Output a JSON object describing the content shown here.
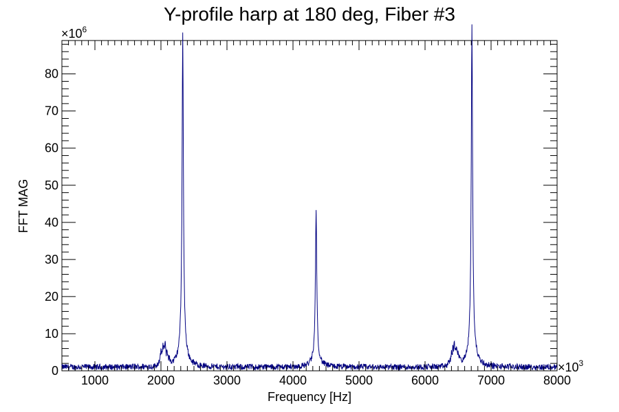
{
  "chart_data": {
    "type": "line",
    "title": "Y-profile harp at 180 deg, Fiber #3",
    "xlabel": "Frequency [Hz]",
    "ylabel": "FFT MAG",
    "x_multiplier": {
      "base": "×10",
      "exponent": "3"
    },
    "y_multiplier": {
      "base": "×10",
      "exponent": "6"
    },
    "xlim": [
      500,
      8000
    ],
    "ylim": [
      0,
      89
    ],
    "x_ticks": [
      1000,
      2000,
      3000,
      4000,
      5000,
      6000,
      7000,
      8000
    ],
    "y_ticks": [
      0,
      10,
      20,
      30,
      40,
      50,
      60,
      70,
      80
    ],
    "x_tick_labels": [
      "1000",
      "2000",
      "3000",
      "4000",
      "5000",
      "6000",
      "7000",
      "8000"
    ],
    "y_tick_labels": [
      "0",
      "10",
      "20",
      "30",
      "40",
      "50",
      "60",
      "70",
      "80"
    ],
    "grid": false,
    "series": [
      {
        "color": "#000080",
        "peaks": [
          {
            "x": 2330,
            "y": 83
          },
          {
            "x": 4350,
            "y": 39
          },
          {
            "x": 6710,
            "y": 85
          }
        ],
        "shoulders": [
          {
            "x": 2050,
            "y": 5
          },
          {
            "x": 6450,
            "y": 5
          }
        ],
        "baseline": 1
      }
    ]
  }
}
